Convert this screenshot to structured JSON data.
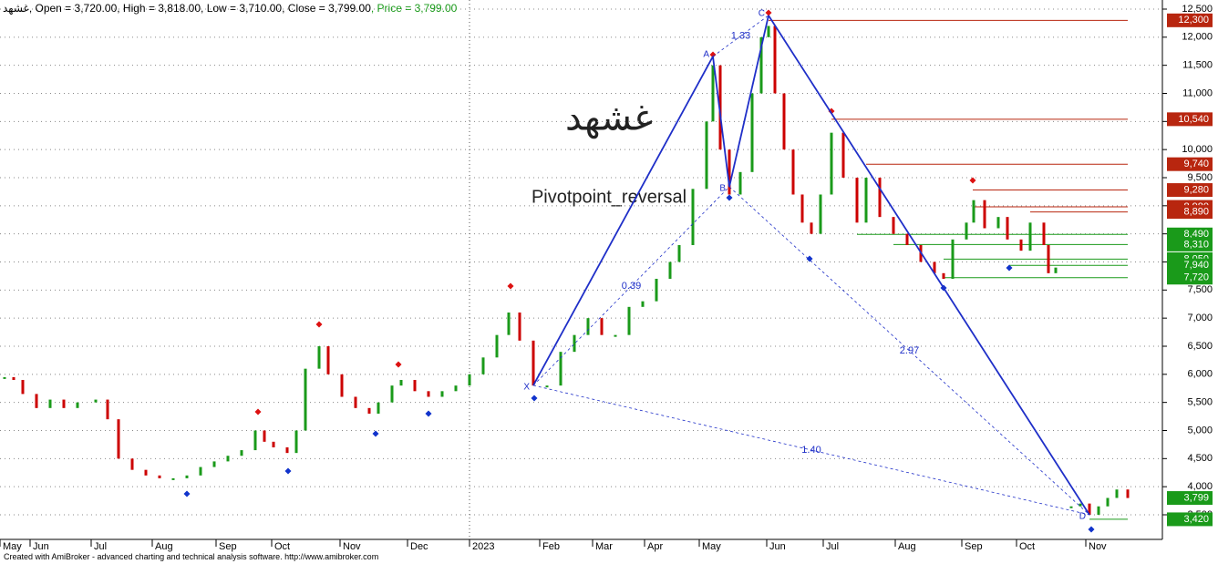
{
  "chart_data": {
    "type": "ohlc",
    "symbol": "غشهد",
    "header": [
      {
        "name": "Open",
        "value": 3720,
        "label": "3,720.00",
        "color": "#000000"
      },
      {
        "name": "High",
        "value": 3818,
        "label": "3,818.00",
        "color": "#000000"
      },
      {
        "name": "Low",
        "value": 3710,
        "label": "3,710.00",
        "color": "#000000"
      },
      {
        "name": "Close",
        "value": 3799,
        "label": "3,799.00",
        "color": "#000000"
      },
      {
        "name": "Price",
        "value": 3799,
        "label": "3,799.00",
        "color": "#1a9a1a"
      }
    ],
    "watermark": "غشهد",
    "formula_name": "Pivotpoint_reversal",
    "footer": "Created with AmiBroker - advanced charting and technical analysis software. http://www.amibroker.com",
    "xlim": [
      0,
      255
    ],
    "ylim": [
      3062,
      12662
    ],
    "yticks": [
      {
        "value": 3500,
        "label": "3,500"
      },
      {
        "value": 4000,
        "label": "4,000"
      },
      {
        "value": 4500,
        "label": "4,500"
      },
      {
        "value": 5000,
        "label": "5,000"
      },
      {
        "value": 5500,
        "label": "5,500"
      },
      {
        "value": 6000,
        "label": "6,000"
      },
      {
        "value": 6500,
        "label": "6,500"
      },
      {
        "value": 7000,
        "label": "7,000"
      },
      {
        "value": 7500,
        "label": "7,500"
      },
      {
        "value": 8000,
        "label": "8,000"
      },
      {
        "value": 8500,
        "label": "8,500"
      },
      {
        "value": 9000,
        "label": "9,000"
      },
      {
        "value": 9500,
        "label": "9,500"
      },
      {
        "value": 10000,
        "label": "10,000"
      },
      {
        "value": 10500,
        "label": "10,500"
      },
      {
        "value": 11000,
        "label": "11,000"
      },
      {
        "value": 11500,
        "label": "11,500"
      },
      {
        "value": 12000,
        "label": "12,000"
      },
      {
        "value": 12500,
        "label": "12,500"
      }
    ],
    "xticks": [
      {
        "value": 0,
        "label": "May"
      },
      {
        "value": 6.6,
        "label": "Jun"
      },
      {
        "value": 20,
        "label": "Jul"
      },
      {
        "value": 33.4,
        "label": "Aug"
      },
      {
        "value": 47.4,
        "label": "Sep"
      },
      {
        "value": 59.6,
        "label": "Oct"
      },
      {
        "value": 74.6,
        "label": "Nov"
      },
      {
        "value": 89.4,
        "label": "Dec"
      },
      {
        "value": 118.4,
        "label": "Feb"
      },
      {
        "value": 130,
        "label": "Mar"
      },
      {
        "value": 141.4,
        "label": "Apr"
      },
      {
        "value": 153.4,
        "label": "May"
      },
      {
        "value": 168.2,
        "label": "Jun"
      },
      {
        "value": 180.6,
        "label": "Jul"
      },
      {
        "value": 196.4,
        "label": "Aug"
      },
      {
        "value": 211,
        "label": "Sep"
      },
      {
        "value": 223,
        "label": "Oct"
      },
      {
        "value": 238.2,
        "label": "Nov"
      }
    ],
    "year_separators": [
      {
        "value": 103,
        "label": "2023"
      }
    ],
    "grid": true,
    "up_color": "#1a9a1a",
    "down_color": "#cc0000",
    "series": [
      {
        "name": "Close",
        "x": [
          1,
          3,
          5,
          8,
          11,
          14,
          17,
          21,
          23.6,
          26,
          29,
          32,
          35,
          38,
          41,
          44,
          47,
          50,
          53,
          56,
          58,
          60,
          63,
          65,
          67,
          70,
          72,
          75,
          78,
          81,
          83,
          86,
          88,
          91,
          94,
          97,
          100,
          103,
          106,
          109,
          111.6,
          114,
          117,
          120,
          123,
          126,
          129,
          132,
          135,
          138,
          141,
          144,
          147,
          149,
          152,
          155,
          156.4,
          158,
          160,
          162.4,
          165,
          167,
          168.6,
          170,
          172,
          174,
          176,
          178,
          180,
          182.4,
          185,
          188,
          190,
          193,
          196,
          199,
          202,
          205,
          207,
          209,
          212,
          213.6,
          216,
          219,
          221,
          224,
          226,
          229,
          230,
          231.6,
          233.6,
          235,
          237,
          239,
          241,
          243,
          245,
          247.4
        ],
        "values": [
          5950,
          5900,
          5650,
          5400,
          5550,
          5400,
          5500,
          5550,
          5200,
          4500,
          4300,
          4200,
          4150,
          4150,
          4200,
          4350,
          4450,
          4550,
          4650,
          5000,
          4800,
          4700,
          4600,
          5000,
          6100,
          6500,
          6000,
          5600,
          5400,
          5300,
          5500,
          5800,
          5900,
          5700,
          5600,
          5700,
          5800,
          6000,
          6300,
          6700,
          7100,
          6600,
          5800,
          5800,
          6400,
          6700,
          7000,
          6700,
          6700,
          7200,
          7300,
          7700,
          8000,
          8300,
          9300,
          10500,
          11500,
          10000,
          9200,
          9600,
          11000,
          12000,
          12200,
          11000,
          10000,
          9200,
          8700,
          8500,
          9200,
          10300,
          9500,
          8700,
          9500,
          8800,
          8500,
          8300,
          8000,
          7800,
          7700,
          8400,
          8700,
          9100,
          8600,
          8800,
          8400,
          8200,
          8700,
          8300,
          7800,
          7900,
          null,
          3650,
          3700,
          3500,
          3650,
          3800,
          3950,
          3799
        ]
      }
    ],
    "pivots_high": {
      "color": "#dd1111",
      "x": [
        56.6,
        70,
        87.4,
        112,
        156.4,
        168.6,
        182.4,
        213.4
      ],
      "values": [
        5332,
        6889,
        6176,
        7570,
        11689,
        12435,
        10684,
        9451
      ]
    },
    "pivots_low": {
      "color": "#1133cc",
      "x": [
        41,
        63.2,
        82.4,
        94,
        117.2,
        160,
        177.6,
        207,
        221.4,
        239.4
      ],
      "values": [
        3873,
        4279,
        4943,
        5300,
        5576,
        9143,
        8057,
        7538,
        7895,
        3241
      ]
    },
    "pattern": {
      "color": "#1f2fc8",
      "points": [
        {
          "label": "X",
          "x": 117,
          "value": 5803
        },
        {
          "label": "A",
          "x": 156.4,
          "value": 11657
        },
        {
          "label": "B",
          "x": 160,
          "value": 9338
        },
        {
          "label": "C",
          "x": 168.6,
          "value": 12387
        },
        {
          "label": "D",
          "x": 239,
          "value": 3500
        }
      ],
      "ratios": [
        {
          "value": 1.33,
          "label": "1.33",
          "legs": [
            "A",
            "C"
          ]
        },
        {
          "value": 0.39,
          "label": "0.39",
          "legs": [
            "X",
            "B"
          ]
        },
        {
          "value": 2.97,
          "label": "2.97",
          "legs": [
            "B",
            "D"
          ]
        },
        {
          "value": 1.4,
          "label": "1.40",
          "legs": [
            "X",
            "D"
          ]
        }
      ]
    },
    "levels": [
      {
        "value": 12300,
        "label": "12,300",
        "color": "#b8260f",
        "start": 168.6
      },
      {
        "value": 10540,
        "label": "10,540",
        "color": "#b8260f",
        "start": 182.4
      },
      {
        "value": 9740,
        "label": "9,740",
        "color": "#b8260f",
        "start": 190
      },
      {
        "value": 9280,
        "label": "9,280",
        "color": "#b8260f",
        "start": 213.4
      },
      {
        "value": 8980,
        "label": "8,980",
        "color": "#b8260f",
        "start": 213.4
      },
      {
        "value": 8890,
        "label": "8,890",
        "color": "#b8260f",
        "start": 226
      },
      {
        "value": 8490,
        "label": "8,490",
        "color": "#1a9a1a",
        "start": 188
      },
      {
        "value": 8310,
        "label": "8,310",
        "color": "#1a9a1a",
        "start": 196
      },
      {
        "value": 8050,
        "label": "8,050",
        "color": "#1a9a1a",
        "start": 207
      },
      {
        "value": 7940,
        "label": "7,940",
        "color": "#1a9a1a",
        "start": 221.4
      },
      {
        "value": 7720,
        "label": "7,720",
        "color": "#1a9a1a",
        "start": 207
      },
      {
        "value": 3420,
        "label": "3,420",
        "color": "#1a9a1a",
        "start": 239
      }
    ],
    "last_price": {
      "value": 3799,
      "label": "3,799",
      "color": "#1a9a1a"
    }
  }
}
